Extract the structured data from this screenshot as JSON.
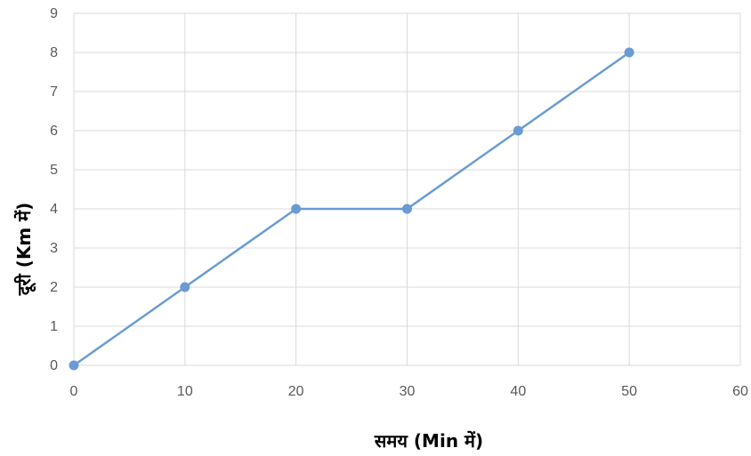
{
  "chart_data": {
    "type": "line",
    "title": "",
    "xlabel": "समय (Min में)",
    "ylabel": "दूरी (Km में)",
    "xlim": [
      0,
      60
    ],
    "ylim": [
      0,
      9
    ],
    "xticks": [
      0,
      10,
      20,
      30,
      40,
      50,
      60
    ],
    "yticks": [
      0,
      1,
      2,
      3,
      4,
      5,
      6,
      7,
      8,
      9
    ],
    "grid": true,
    "legend": "none",
    "series": [
      {
        "x": [
          0,
          10,
          20,
          30,
          40,
          50
        ],
        "y": [
          0,
          2,
          4,
          4,
          6,
          8
        ],
        "color": "#6A9BD4"
      }
    ]
  }
}
